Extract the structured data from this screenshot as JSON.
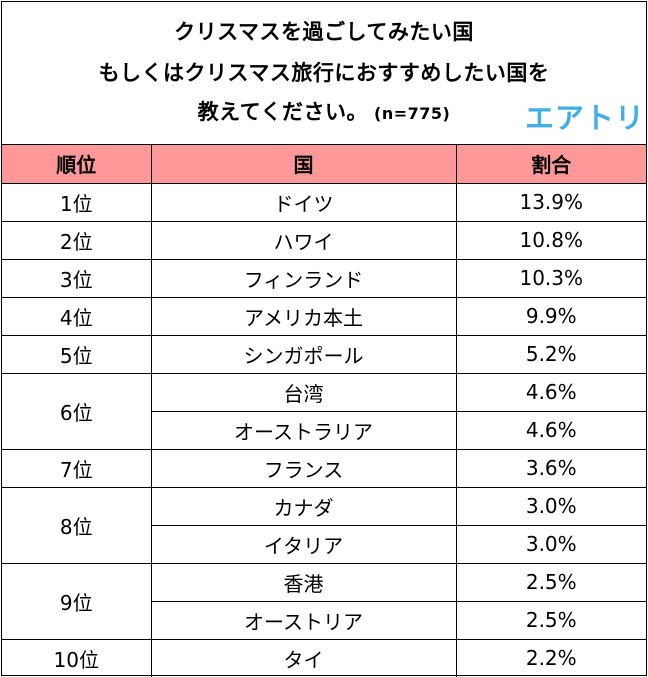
{
  "title": {
    "line1": "クリスマスを過ごしてみたい国",
    "line2": "もしくはクリスマス旅行におすすめしたい国を",
    "line3": "教えてください。",
    "note": "(n=775)"
  },
  "logo": {
    "text": "エアトリ",
    "color": "#41aee5"
  },
  "colors": {
    "header_bg": "#ff9999"
  },
  "chart_data": {
    "type": "table",
    "columns": [
      "順位",
      "国",
      "割合"
    ],
    "groups": [
      {
        "rank": "1位",
        "items": [
          {
            "country": "ドイツ",
            "share": "13.9%"
          }
        ]
      },
      {
        "rank": "2位",
        "items": [
          {
            "country": "ハワイ",
            "share": "10.8%"
          }
        ]
      },
      {
        "rank": "3位",
        "items": [
          {
            "country": "フィンランド",
            "share": "10.3%"
          }
        ]
      },
      {
        "rank": "4位",
        "items": [
          {
            "country": "アメリカ本土",
            "share": "9.9%"
          }
        ]
      },
      {
        "rank": "5位",
        "items": [
          {
            "country": "シンガポール",
            "share": "5.2%"
          }
        ]
      },
      {
        "rank": "6位",
        "items": [
          {
            "country": "台湾",
            "share": "4.6%"
          },
          {
            "country": "オーストラリア",
            "share": "4.6%"
          }
        ]
      },
      {
        "rank": "7位",
        "items": [
          {
            "country": "フランス",
            "share": "3.6%"
          }
        ]
      },
      {
        "rank": "8位",
        "items": [
          {
            "country": "カナダ",
            "share": "3.0%"
          },
          {
            "country": "イタリア",
            "share": "3.0%"
          }
        ]
      },
      {
        "rank": "9位",
        "items": [
          {
            "country": "香港",
            "share": "2.5%"
          },
          {
            "country": "オーストリア",
            "share": "2.5%"
          }
        ]
      },
      {
        "rank": "10位",
        "items": [
          {
            "country": "タイ",
            "share": "2.2%"
          }
        ]
      }
    ]
  }
}
